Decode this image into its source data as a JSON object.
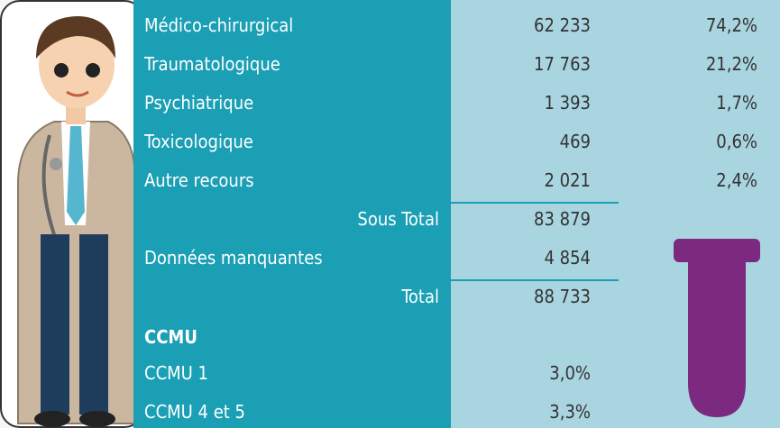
{
  "table": {
    "rows": [
      {
        "label": "Médico-chirurgical",
        "count": "62 233",
        "percent": "74,2%"
      },
      {
        "label": "Traumatologique",
        "count": "17 763",
        "percent": "21,2%"
      },
      {
        "label": "Psychiatrique",
        "count": "1 393",
        "percent": "1,7%"
      },
      {
        "label": "Toxicologique",
        "count": "469",
        "percent": "0,6%"
      },
      {
        "label": "Autre recours",
        "count": "2 021",
        "percent": "2,4%"
      }
    ],
    "subtotal": {
      "label": "Sous Total",
      "count": "83 879"
    },
    "missing": {
      "label": "Données manquantes",
      "count": "4 854"
    },
    "total": {
      "label": "Total",
      "count": "88 733"
    },
    "ccmu": {
      "title": "CCMU",
      "rows": [
        {
          "label": "CCMU 1",
          "value": "3,0%"
        },
        {
          "label": "CCMU 4 et 5",
          "value": "3,3%"
        }
      ]
    }
  }
}
